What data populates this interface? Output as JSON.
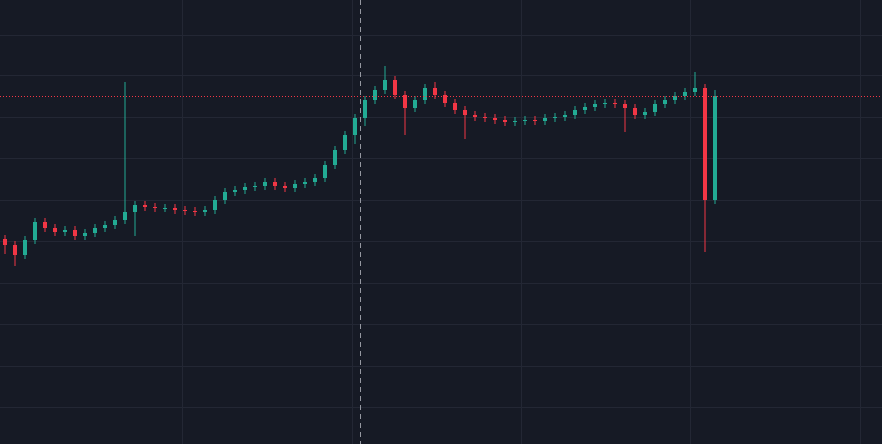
{
  "chart_data": {
    "type": "candlestick",
    "open": [
      205,
      199,
      189,
      204,
      222,
      216,
      212,
      214,
      208,
      211,
      216,
      219,
      224,
      232,
      239,
      237,
      236,
      236,
      234,
      233,
      232,
      234,
      244,
      252,
      254,
      257,
      258,
      262,
      258,
      256,
      260,
      262,
      266,
      279,
      294,
      309,
      326,
      344,
      354,
      364,
      349,
      336,
      344,
      356,
      349,
      341,
      334,
      329,
      327,
      326,
      324,
      322,
      323,
      324,
      323,
      326,
      327,
      329,
      334,
      337,
      340,
      341,
      340,
      336,
      329,
      332,
      340,
      344,
      348,
      352,
      356,
      244
    ],
    "high": [
      209,
      203,
      208,
      226,
      226,
      220,
      218,
      218,
      215,
      220,
      223,
      228,
      362,
      243,
      243,
      241,
      240,
      240,
      238,
      237,
      238,
      248,
      256,
      258,
      261,
      262,
      266,
      266,
      262,
      264,
      266,
      270,
      283,
      298,
      313,
      330,
      348,
      358,
      378,
      368,
      353,
      348,
      360,
      362,
      353,
      345,
      338,
      333,
      331,
      330,
      328,
      327,
      328,
      328,
      330,
      331,
      333,
      338,
      341,
      344,
      345,
      345,
      344,
      340,
      336,
      344,
      348,
      352,
      356,
      372,
      360,
      354
    ],
    "low": [
      190,
      178,
      185,
      200,
      212,
      208,
      208,
      204,
      204,
      207,
      212,
      215,
      220,
      208,
      233,
      232,
      232,
      230,
      229,
      228,
      228,
      230,
      240,
      248,
      250,
      253,
      254,
      254,
      252,
      252,
      256,
      258,
      262,
      275,
      290,
      300,
      318,
      340,
      350,
      345,
      309,
      332,
      340,
      345,
      337,
      330,
      305,
      323,
      322,
      320,
      318,
      318,
      319,
      319,
      319,
      322,
      323,
      325,
      330,
      333,
      336,
      336,
      312,
      325,
      325,
      328,
      336,
      340,
      344,
      348,
      192,
      240
    ],
    "close": [
      199,
      189,
      204,
      222,
      216,
      212,
      214,
      208,
      211,
      216,
      219,
      224,
      232,
      239,
      237,
      236,
      236,
      234,
      233,
      232,
      234,
      244,
      252,
      254,
      257,
      258,
      262,
      258,
      256,
      260,
      262,
      266,
      279,
      294,
      309,
      326,
      344,
      354,
      364,
      349,
      336,
      344,
      356,
      349,
      341,
      334,
      329,
      327,
      326,
      324,
      322,
      323,
      324,
      323,
      326,
      327,
      329,
      334,
      337,
      340,
      341,
      340,
      336,
      329,
      332,
      340,
      344,
      348,
      352,
      356,
      244,
      348
    ],
    "up_color": "#22ab94",
    "down_color": "#f23645",
    "last_price_color": "#f23645",
    "ylim": [
      0,
      444
    ],
    "yticks": [
      37,
      78,
      120,
      161,
      203,
      244,
      286,
      327,
      369,
      409
    ],
    "grid": true
  }
}
